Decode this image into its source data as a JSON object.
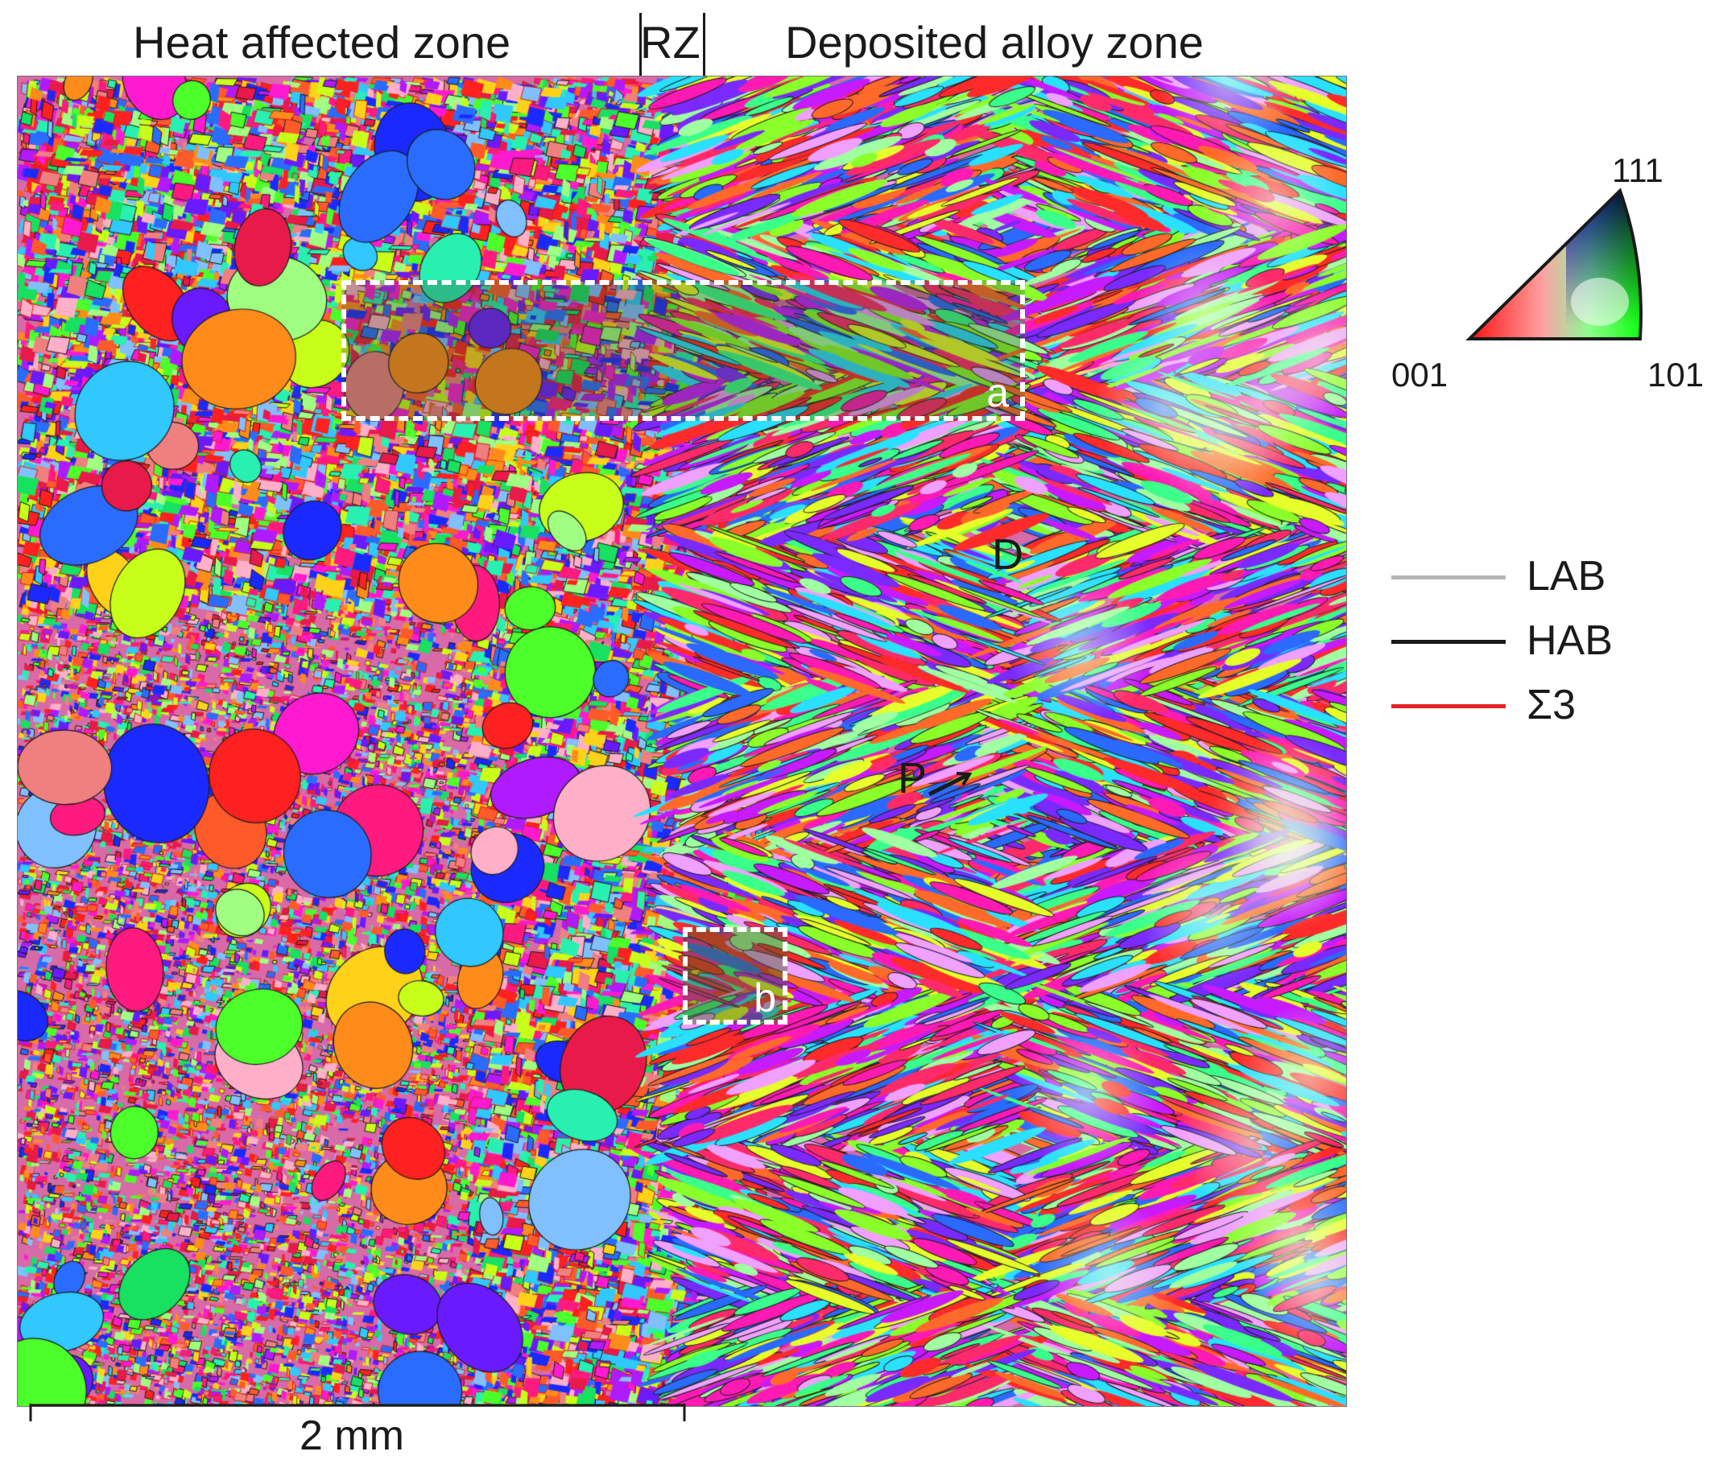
{
  "header": {
    "heat_affected_zone": "Heat affected zone",
    "rz": "RZ",
    "deposited_alloy_zone": "Deposited alloy zone"
  },
  "map": {
    "regions": {
      "a": "a",
      "b": "b"
    },
    "markers": {
      "d": "D",
      "p": "P"
    }
  },
  "ipf_key": {
    "corner_111": "111",
    "corner_001": "001",
    "corner_101": "101",
    "colors": {
      "001": "#ff0000",
      "101": "#00ff00",
      "111": "#0000ff"
    }
  },
  "legend": {
    "items": [
      {
        "label": "LAB",
        "color": "#b5b5b5"
      },
      {
        "label": "HAB",
        "color": "#1a1a1a"
      },
      {
        "label": "Σ3",
        "color": "#e32222"
      }
    ]
  },
  "scale": {
    "label": "2 mm"
  }
}
